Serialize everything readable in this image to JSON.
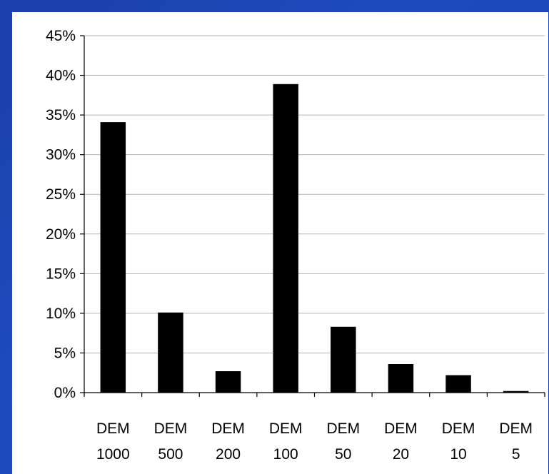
{
  "colors": {
    "background": "#1f4bbf",
    "panel": "#ffffff",
    "bar": "#000000",
    "grid": "#b4b4b4"
  },
  "chart_data": {
    "type": "bar",
    "title": "",
    "xlabel": "",
    "ylabel": "",
    "categories": [
      "DEM 1000",
      "DEM 500",
      "DEM 200",
      "DEM 100",
      "DEM 50",
      "DEM 20",
      "DEM 10",
      "DEM 5"
    ],
    "category_lines": [
      [
        "DEM",
        "1000"
      ],
      [
        "DEM",
        "500"
      ],
      [
        "DEM",
        "200"
      ],
      [
        "DEM",
        "100"
      ],
      [
        "DEM",
        "50"
      ],
      [
        "DEM",
        "20"
      ],
      [
        "DEM",
        "10"
      ],
      [
        "DEM",
        "5"
      ]
    ],
    "values": [
      0.341,
      0.101,
      0.027,
      0.389,
      0.083,
      0.036,
      0.022,
      0.002
    ],
    "ylim": [
      0,
      0.45
    ],
    "yticks": [
      0,
      0.05,
      0.1,
      0.15,
      0.2,
      0.25,
      0.3,
      0.35,
      0.4,
      0.45
    ],
    "ytick_labels": [
      "0%",
      "5%",
      "10%",
      "15%",
      "20%",
      "25%",
      "30%",
      "35%",
      "40%",
      "45%"
    ],
    "grid": true,
    "legend": "none"
  }
}
